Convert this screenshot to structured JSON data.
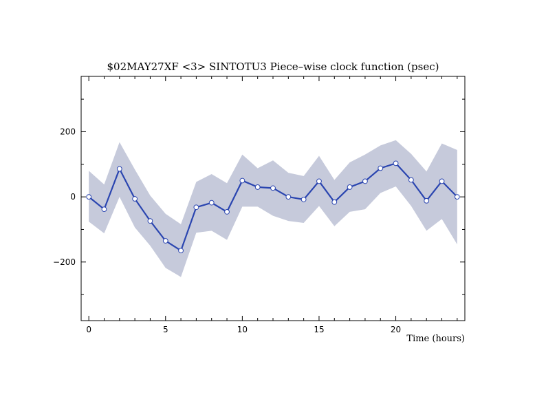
{
  "chart_data": {
    "type": "line",
    "title": "$02MAY27XF <3>  SINTOTU3  Piece–wise clock function (psec)",
    "xlabel": "Time (hours)",
    "ylabel": "",
    "xlim": [
      -0.5,
      24.5
    ],
    "ylim": [
      -380,
      370
    ],
    "x_ticks": [
      0,
      5,
      10,
      15,
      20
    ],
    "x_tick_labels": [
      "0",
      "5",
      "10",
      "15",
      "20"
    ],
    "y_ticks": [
      -200,
      0,
      200
    ],
    "y_tick_labels": [
      "−200",
      "0",
      "200"
    ],
    "grid": false,
    "legend": "none",
    "series": [
      {
        "x": [
          0,
          1,
          2,
          3,
          4,
          5,
          6,
          7,
          8,
          9,
          10,
          11,
          12,
          13,
          14,
          15,
          16,
          17,
          18,
          19,
          20,
          21,
          22,
          23,
          24
        ],
        "values": [
          0,
          -38,
          86,
          -6,
          -74,
          -135,
          -165,
          -32,
          -18,
          -46,
          50,
          30,
          27,
          0,
          -8,
          48,
          -16,
          30,
          48,
          88,
          103,
          52,
          -12,
          48,
          0
        ],
        "upper": [
          80,
          38,
          168,
          84,
          4,
          -52,
          -84,
          46,
          70,
          42,
          130,
          88,
          112,
          74,
          64,
          126,
          52,
          106,
          130,
          158,
          174,
          132,
          78,
          164,
          144
        ],
        "lower": [
          -76,
          -112,
          0,
          -94,
          -150,
          -218,
          -246,
          -110,
          -104,
          -132,
          -30,
          -30,
          -58,
          -74,
          -80,
          -28,
          -90,
          -46,
          -38,
          12,
          32,
          -28,
          -104,
          -68,
          -146
        ]
      }
    ],
    "colors": {
      "band": "#c6cadb",
      "line": "#2a45b0",
      "marker_fill": "#ffffff",
      "marker_edge": "#2a45b0",
      "axes": "#000000"
    }
  }
}
